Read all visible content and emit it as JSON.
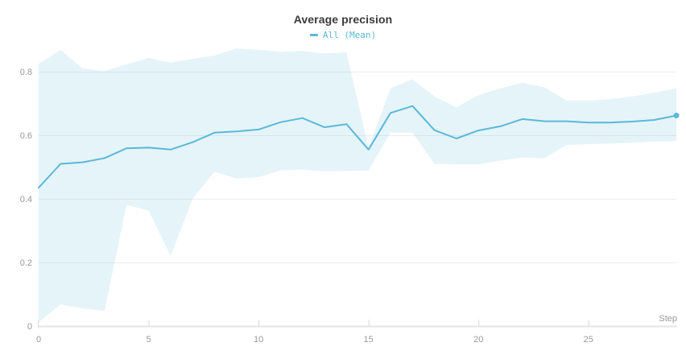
{
  "title": "Average precision",
  "legend": {
    "marker": "line-dash-icon",
    "label": "All (Mean)"
  },
  "colors": {
    "line": "#5bb8d9",
    "band_fill": "rgba(91,184,217,0.16)",
    "grid": "#ededed",
    "axis": "#e4e4e4",
    "tick": "#d9d9d9",
    "tick_text": "#999999",
    "title_text": "#3b3b3b"
  },
  "axis": {
    "xlabel": "Step",
    "x_tick_labels": [
      "0",
      "5",
      "10",
      "15",
      "20",
      "25"
    ],
    "x_tick_values": [
      0,
      5,
      10,
      15,
      20,
      25
    ],
    "y_tick_labels": [
      "0",
      "0.2",
      "0.4",
      "0.6",
      "0.8"
    ],
    "y_tick_values": [
      0,
      0.2,
      0.4,
      0.6,
      0.8
    ]
  },
  "chart_data": {
    "type": "line",
    "title": "Average precision",
    "xlabel": "Step",
    "ylabel": "",
    "xlim": [
      0,
      29
    ],
    "ylim": [
      0,
      0.9
    ],
    "grid": true,
    "legend_position": "top-center",
    "x": [
      0,
      1,
      2,
      3,
      4,
      5,
      6,
      7,
      8,
      9,
      10,
      11,
      12,
      13,
      14,
      15,
      16,
      17,
      18,
      19,
      20,
      21,
      22,
      23,
      24,
      25,
      26,
      27,
      28,
      29
    ],
    "series": [
      {
        "name": "All (Mean)",
        "values": [
          0.435,
          0.51,
          0.515,
          0.528,
          0.559,
          0.561,
          0.555,
          0.578,
          0.608,
          0.612,
          0.618,
          0.641,
          0.654,
          0.625,
          0.635,
          0.555,
          0.67,
          0.692,
          0.616,
          0.59,
          0.615,
          0.628,
          0.651,
          0.644,
          0.644,
          0.64,
          0.64,
          0.643,
          0.648,
          0.662
        ]
      }
    ],
    "band": {
      "name": "range around mean",
      "upper": [
        0.825,
        0.868,
        0.81,
        0.802,
        0.823,
        0.843,
        0.828,
        0.84,
        0.851,
        0.873,
        0.869,
        0.862,
        0.865,
        0.857,
        0.861,
        0.56,
        0.748,
        0.776,
        0.722,
        0.688,
        0.726,
        0.747,
        0.765,
        0.751,
        0.71,
        0.709,
        0.713,
        0.722,
        0.734,
        0.748
      ],
      "lower": [
        0.012,
        0.068,
        0.055,
        0.048,
        0.381,
        0.363,
        0.22,
        0.4,
        0.485,
        0.464,
        0.468,
        0.49,
        0.492,
        0.487,
        0.488,
        0.489,
        0.608,
        0.608,
        0.51,
        0.508,
        0.508,
        0.52,
        0.53,
        0.527,
        0.569,
        0.572,
        0.574,
        0.576,
        0.58,
        0.582
      ]
    },
    "end_marker": {
      "x": 29,
      "y": 0.662
    }
  }
}
